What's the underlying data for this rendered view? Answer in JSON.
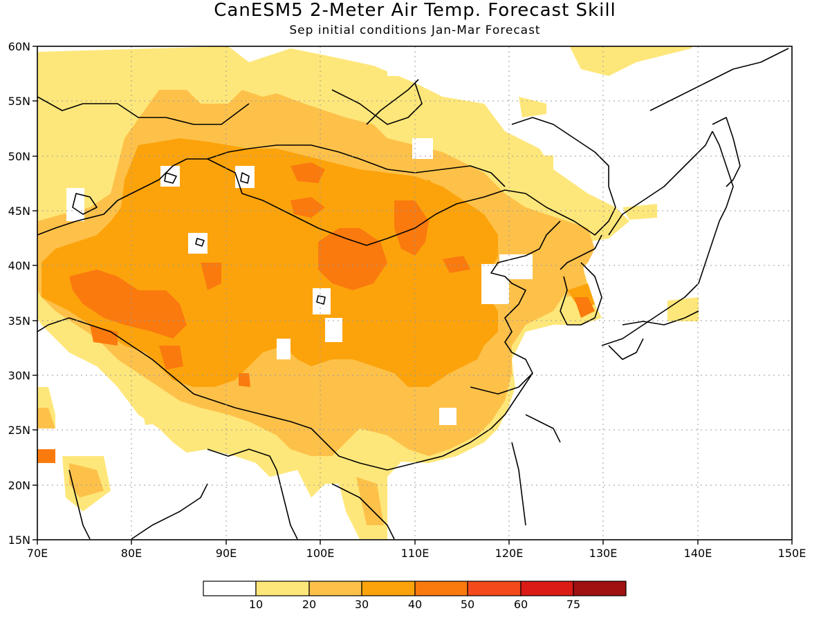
{
  "title": "CanESM5 2-Meter Air Temp. Forecast Skill",
  "subtitle": "Sep initial conditions  Jan-Mar Forecast",
  "map": {
    "lon_range": [
      70,
      150
    ],
    "lat_range": [
      15,
      60
    ],
    "lon_ticks": [
      "70E",
      "80E",
      "90E",
      "100E",
      "110E",
      "120E",
      "130E",
      "140E",
      "150E"
    ],
    "lat_ticks": [
      "15N",
      "20N",
      "25N",
      "30N",
      "35N",
      "40N",
      "45N",
      "50N",
      "55N",
      "60N"
    ],
    "grid": "dotted"
  },
  "colorbar": {
    "labels": [
      "10",
      "20",
      "30",
      "40",
      "50",
      "60",
      "75"
    ],
    "colors": [
      "#ffffff",
      "#fee77a",
      "#fdc14a",
      "#fca30c",
      "#fa7a0e",
      "#f4491a",
      "#db1c16",
      "#a01111"
    ]
  },
  "colors": {
    "c1": "#fee77a",
    "c2": "#fdc14a",
    "c3": "#fca30c",
    "c4": "#fa7a0e"
  }
}
